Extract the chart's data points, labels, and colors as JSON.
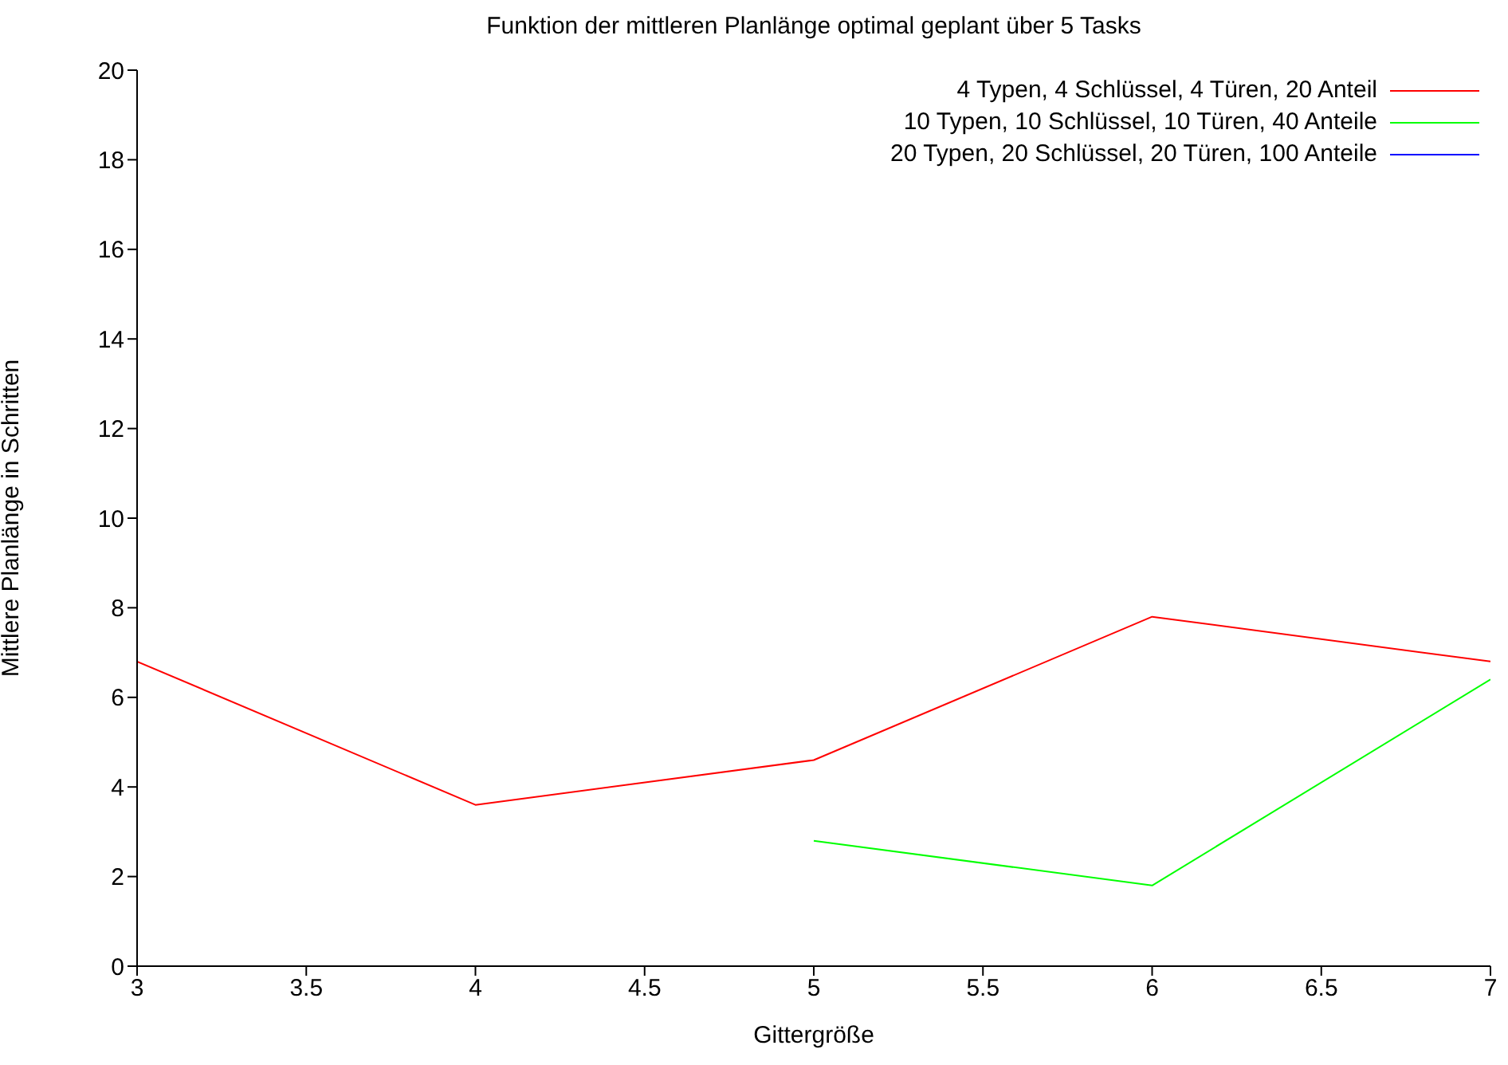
{
  "chart_data": {
    "type": "line",
    "title": "Funktion der mittleren Planlänge optimal geplant über 5 Tasks",
    "xlabel": "Gittergröße",
    "ylabel": "Mittlere Planlänge in Schritten",
    "x": [
      3,
      4,
      5,
      6,
      7
    ],
    "series": [
      {
        "name": "4 Typen, 4 Schlüssel, 4 Türen, 20 Anteil",
        "color": "#ff0000",
        "values": [
          6.8,
          3.6,
          4.6,
          7.8,
          6.8
        ]
      },
      {
        "name": "10 Typen, 10 Schlüssel, 10 Türen, 40 Anteile",
        "color": "#00ff00",
        "values": [
          null,
          null,
          2.8,
          1.8,
          6.4
        ]
      },
      {
        "name": "20 Typen, 20 Schlüssel, 20 Türen, 100 Anteile",
        "color": "#0000ff",
        "values": [
          null,
          null,
          null,
          null,
          null
        ]
      }
    ],
    "xlim": [
      3,
      7
    ],
    "xticks": [
      3,
      3.5,
      4,
      4.5,
      5,
      5.5,
      6,
      6.5,
      7
    ],
    "ylim": [
      0,
      20
    ],
    "yticks": [
      0,
      2,
      4,
      6,
      8,
      10,
      12,
      14,
      16,
      18,
      20
    ],
    "grid": false,
    "legend": "top right",
    "marker": "none",
    "line_style": "solid"
  }
}
